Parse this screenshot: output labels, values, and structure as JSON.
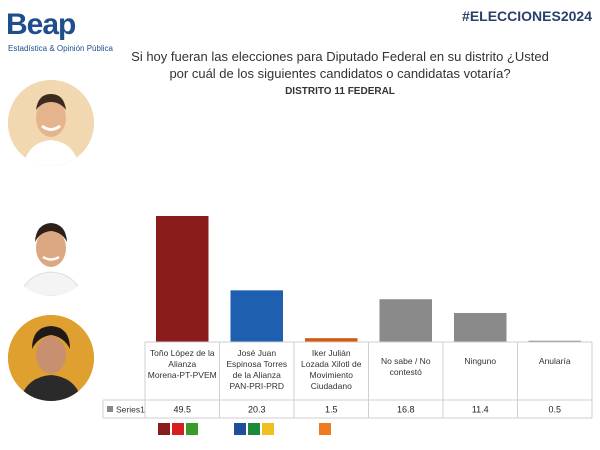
{
  "header": {
    "logo_text": "Beap",
    "logo_subtitle": "Estadística & Opinión Pública",
    "hashtag": "#ELECCIONES2024",
    "question": "Si hoy fueran las elecciones para Diputado Federal en su distrito ¿Usted por cuál de los siguientes candidatos o candidatas votaría?",
    "subtitle": "DISTRITO 11 FEDERAL"
  },
  "avatars": [
    {
      "name": "candidate-1-photo"
    },
    {
      "name": "candidate-2-photo"
    },
    {
      "name": "candidate-3-photo"
    }
  ],
  "chart_data": {
    "type": "bar",
    "categories": [
      "Toño López de la Alianza Morena-PT-PVEM",
      "José Juan Espinosa Torres de la Alianza PAN-PRI-PRD",
      "Iker Julián Lozada Xilotl de Movimiento Ciudadano",
      "No sabe / No contestó",
      "Ninguno",
      "Anularía"
    ],
    "series": [
      {
        "name": "Series1",
        "values": [
          49.5,
          20.3,
          1.5,
          16.8,
          11.4,
          0.5
        ]
      }
    ],
    "bar_colors": [
      "#8b1c1c",
      "#1f5fb0",
      "#d05a10",
      "#8a8a8a",
      "#8a8a8a",
      "#8a8a8a"
    ],
    "ylim": [
      0,
      55
    ],
    "grid": false,
    "legend": "table"
  },
  "party_logos": [
    {
      "label": "MORENA PT PVEM",
      "colors": [
        "#8b1c1c",
        "#d61f1f",
        "#3a9a2a"
      ]
    },
    {
      "label": "PAN PRI PRD",
      "colors": [
        "#1f4e9a",
        "#1a8a3a",
        "#f0c020"
      ]
    },
    {
      "label": "MC",
      "colors": [
        "#f07a20"
      ]
    }
  ]
}
